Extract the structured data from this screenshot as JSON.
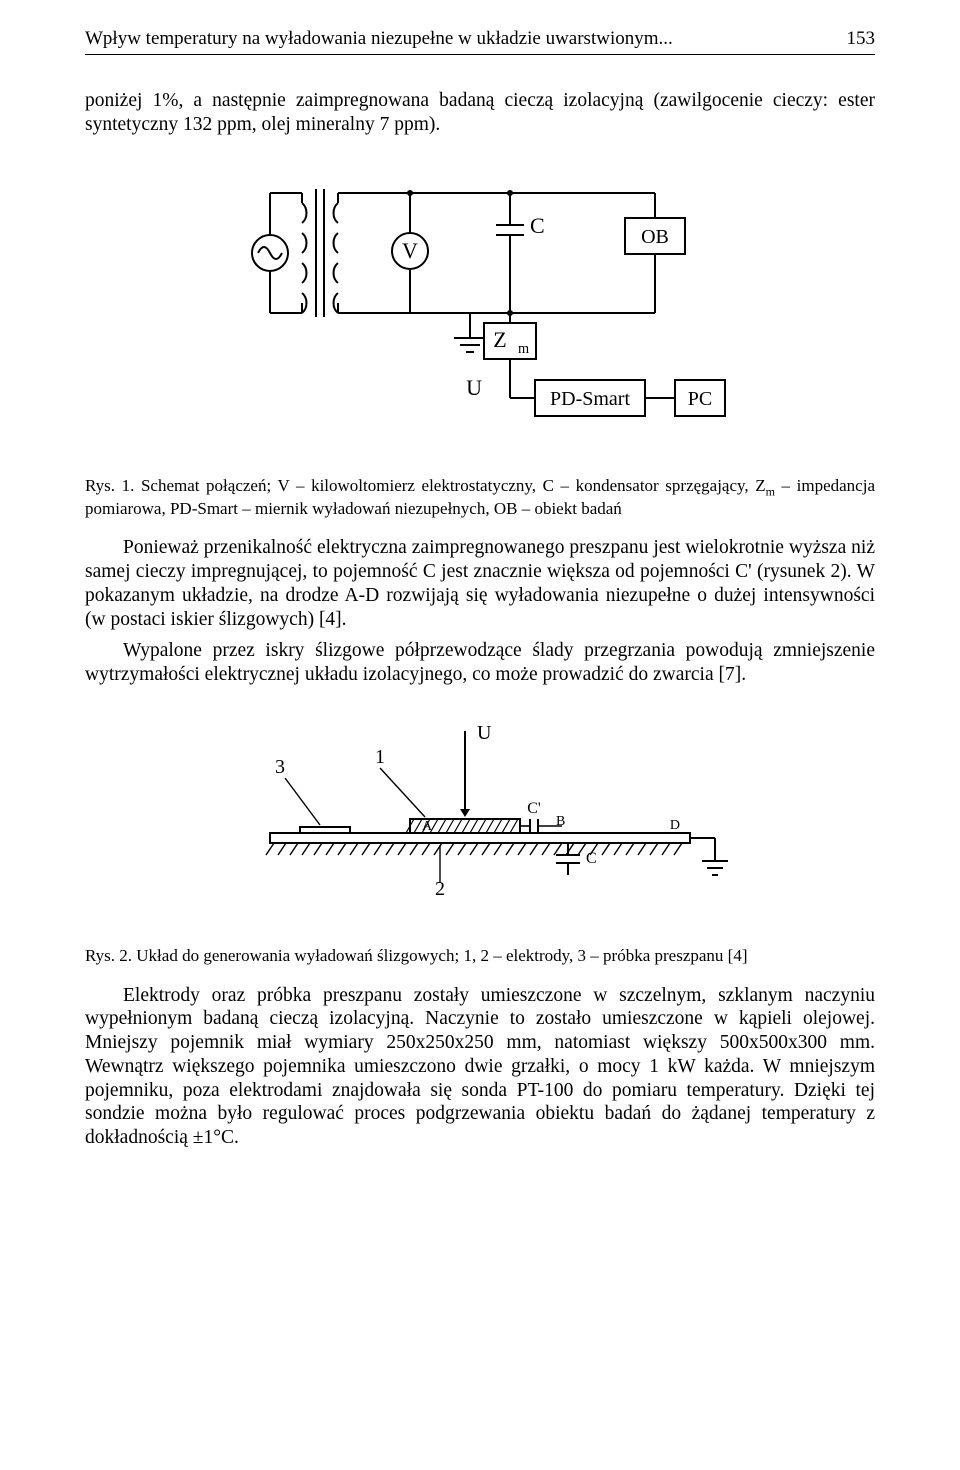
{
  "header": {
    "running_title": "Wpływ temperatury na wyładowania niezupełne w układzie uwarstwionym...",
    "page_number": "153"
  },
  "paragraphs": {
    "p1": "poniżej 1%, a następnie zaimpregnowana badaną cieczą izolacyjną (zawilgocenie cieczy: ester syntetyczny 132 ppm, olej mineralny 7 ppm).",
    "p2": "Ponieważ przenikalność elektryczna zaimpregnowanego preszpanu jest wielokrotnie wyższa niż samej cieczy impregnującej, to pojemność C jest znacznie większa od pojemności C' (rysunek 2). W pokazanym układzie, na drodze A-D rozwijają się wyładowania niezupełne o dużej intensywności (w postaci iskier ślizgowych) [4].",
    "p3": "Wypalone przez iskry ślizgowe półprzewodzące ślady przegrzania powodują zmniejszenie wytrzymałości elektrycznej układu izolacyjnego, co może prowadzić do zwarcia [7].",
    "p4": "Elektrody oraz próbka preszpanu zostały umieszczone w szczelnym, szklanym naczyniu wypełnionym badaną cieczą izolacyjną. Naczynie to zostało umieszczone w kąpieli olejowej. Mniejszy pojemnik miał wymiary 250x250x250 mm, natomiast większy 500x500x300 mm. Wewnątrz większego pojemnika umieszczono dwie grzałki, o mocy 1 kW każda. W mniejszym pojemniku, poza elektrodami znajdowała się sonda PT-100 do pomiaru temperatury. Dzięki tej sondzie można było regulować proces podgrzewania obiektu badań do żądanej temperatury z dokładnością ±1°C."
  },
  "captions": {
    "fig1_prefix": "Rys. 1. ",
    "fig1_text_a": "Schemat połączeń; V – kilowoltomierz elektrostatyczny, C – kondensator sprzęgający, Z",
    "fig1_sub": "m",
    "fig1_text_b": " – impedancja pomiarowa, PD-Smart – miernik wyładowań niezupełnych, OB – obiekt badań",
    "fig2_prefix": "Rys. 2. ",
    "fig2_text": "Układ do generowania wyładowań ślizgowych; 1, 2 – elektrody, 3 – próbka preszpanu [4]"
  },
  "figure1": {
    "type": "circuit-schematic",
    "background": "#ffffff",
    "stroke": "#000000",
    "stroke_width": 2,
    "font_family": "Times New Roman, serif",
    "label_fontsize": 22,
    "box_fontsize": 20,
    "components": {
      "V": "V",
      "C": "C",
      "Zm": "Z",
      "Zm_sub": "m",
      "U": "U",
      "OB": "OB",
      "PDS": "PD-Smart",
      "PC": "PC"
    }
  },
  "figure2": {
    "type": "electrode-diagram",
    "background": "#ffffff",
    "stroke": "#000000",
    "stroke_width": 2,
    "font_family": "Times New Roman, serif",
    "label_fontsize": 20,
    "labels": {
      "U": "U",
      "n1": "1",
      "n2": "2",
      "n3": "3",
      "A": "A",
      "B": "B",
      "C": "C",
      "Cp": "C'",
      "D": "D"
    }
  }
}
